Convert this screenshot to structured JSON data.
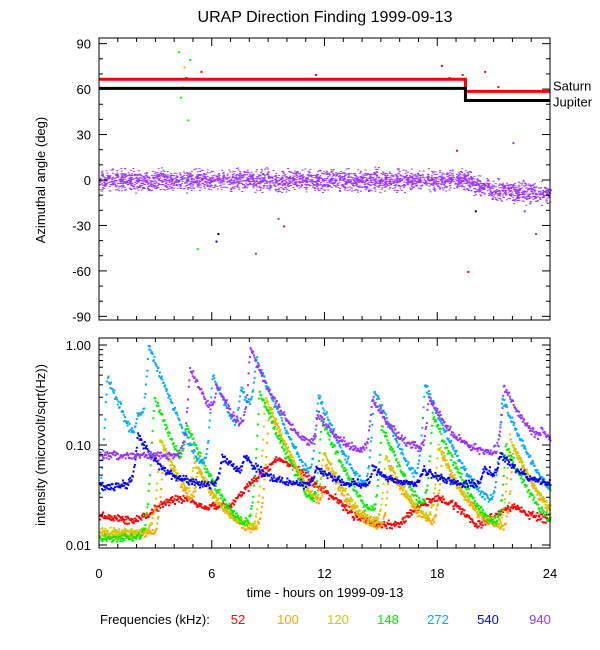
{
  "chart_data": [
    {
      "type": "scatter",
      "title": "URAP Direction Finding  1999-09-13",
      "ylabel": "Azimuthal angle (deg)",
      "xlim": [
        0,
        24
      ],
      "ylim": [
        -90,
        90
      ],
      "yticks": [
        "90",
        "60",
        "30",
        "0",
        "-30",
        "-60",
        "-90"
      ],
      "reference_lines": [
        {
          "name": "Saturn",
          "color": "#ff0000",
          "segments": [
            [
              0,
              19.5,
              66.5
            ],
            [
              19.5,
              24,
              58.5
            ]
          ]
        },
        {
          "name": "Jupiter",
          "color": "#000000",
          "segments": [
            [
              0,
              19.5,
              60.5
            ],
            [
              19.5,
              24,
              52.5
            ]
          ]
        }
      ],
      "scatter_band": {
        "color": "#9933ff",
        "mean": [
          [
            0,
            0
          ],
          [
            19.5,
            0
          ],
          [
            21,
            -7
          ],
          [
            24,
            -8
          ]
        ],
        "spread": 6
      },
      "outliers": [
        [
          4.2,
          85,
          "#00ff00"
        ],
        [
          4.5,
          75,
          "#ffaa00"
        ],
        [
          4.4,
          62,
          "#ffcc00"
        ],
        [
          4.6,
          68,
          "#ff0000"
        ],
        [
          4.3,
          55,
          "#00ff00"
        ],
        [
          4.8,
          80,
          "#00ff00"
        ],
        [
          5.4,
          72,
          "#ff0000"
        ],
        [
          4.7,
          40,
          "#00ff00"
        ],
        [
          18.2,
          76,
          "#ff0000"
        ],
        [
          18.6,
          68,
          "#ff0000"
        ],
        [
          19.3,
          70,
          "#ff0000"
        ],
        [
          20.5,
          72,
          "#ff0000"
        ],
        [
          21.2,
          62,
          "#ff0000"
        ],
        [
          11.5,
          70,
          "#ff0000"
        ],
        [
          6.2,
          -40,
          "#0000ff"
        ],
        [
          6.3,
          -35,
          "#000000"
        ],
        [
          8.3,
          -48,
          "#9933ff"
        ],
        [
          9.5,
          -25,
          "#9933ff"
        ],
        [
          9.8,
          -30,
          "#ff0000"
        ],
        [
          5.2,
          -45,
          "#00ff00"
        ],
        [
          23.2,
          -35,
          "#9933ff"
        ],
        [
          22.6,
          -20,
          "#9933ff"
        ],
        [
          19.6,
          -60,
          "#ff0000"
        ],
        [
          20.0,
          -20,
          "#000000"
        ],
        [
          19.0,
          20,
          "#ff0000"
        ],
        [
          22.0,
          25,
          "#9933ff"
        ]
      ]
    },
    {
      "type": "scatter",
      "ylabel": "intensity (microvolt/sqrt(Hz))",
      "xlabel": "time - hours on 1999-09-13",
      "xlim": [
        0,
        24
      ],
      "ylim": [
        0.01,
        1.0
      ],
      "yscale": "log",
      "xticks": [
        "0",
        "6",
        "12",
        "18",
        "24"
      ],
      "yticks": [
        "1.00",
        "0.10",
        "0.01"
      ],
      "legend_title": "Frequencies (kHz):",
      "series": [
        {
          "name": "52",
          "color": "#ff0000",
          "base": [
            [
              0,
              0.02
            ],
            [
              1.5,
              0.018
            ],
            [
              2.5,
              0.02
            ],
            [
              3.5,
              0.028
            ],
            [
              4.5,
              0.03
            ],
            [
              5.5,
              0.025
            ],
            [
              7,
              0.025
            ],
            [
              8.5,
              0.05
            ],
            [
              9.5,
              0.075
            ],
            [
              10.5,
              0.06
            ],
            [
              11.5,
              0.04
            ],
            [
              12.5,
              0.03
            ],
            [
              13.5,
              0.02
            ],
            [
              15,
              0.016
            ],
            [
              16,
              0.017
            ],
            [
              17,
              0.025
            ],
            [
              18,
              0.03
            ],
            [
              19,
              0.025
            ],
            [
              20,
              0.016
            ],
            [
              21,
              0.02
            ],
            [
              22,
              0.025
            ],
            [
              23,
              0.02
            ],
            [
              24,
              0.018
            ]
          ],
          "peaks": []
        },
        {
          "name": "100",
          "color": "#ffa500",
          "base": [
            [
              0,
              0.013
            ],
            [
              24,
              0.013
            ]
          ],
          "peaks": [
            [
              3.4,
              0.09
            ],
            [
              5.2,
              0.05
            ],
            [
              9.0,
              0.25
            ],
            [
              12.0,
              0.06
            ],
            [
              15.4,
              0.06
            ],
            [
              18.2,
              0.08
            ],
            [
              22.0,
              0.1
            ]
          ]
        },
        {
          "name": "120",
          "color": "#cccc00",
          "base": [
            [
              0,
              0.014
            ],
            [
              24,
              0.014
            ]
          ],
          "peaks": [
            [
              3.2,
              0.12
            ],
            [
              5.0,
              0.06
            ],
            [
              8.8,
              0.3
            ],
            [
              11.9,
              0.08
            ],
            [
              15.2,
              0.08
            ],
            [
              18.0,
              0.1
            ],
            [
              21.8,
              0.12
            ]
          ]
        },
        {
          "name": "148",
          "color": "#00ee00",
          "base": [
            [
              0,
              0.012
            ],
            [
              24,
              0.012
            ]
          ],
          "peaks": [
            [
              2.9,
              0.3
            ],
            [
              4.6,
              0.12
            ],
            [
              8.5,
              0.35
            ],
            [
              11.8,
              0.18
            ],
            [
              15.0,
              0.15
            ],
            [
              17.7,
              0.2
            ],
            [
              21.6,
              0.1
            ]
          ]
        },
        {
          "name": "272",
          "color": "#00aaff",
          "base": [
            [
              0,
              0.02
            ],
            [
              24,
              0.02
            ]
          ],
          "peaks": [
            [
              0.4,
              0.5
            ],
            [
              2.0,
              0.13
            ],
            [
              2.6,
              0.9
            ],
            [
              6.0,
              0.5
            ],
            [
              7.5,
              0.3
            ],
            [
              8.3,
              0.6
            ],
            [
              11.6,
              0.3
            ],
            [
              14.6,
              0.35
            ],
            [
              17.3,
              0.4
            ],
            [
              21.4,
              0.3
            ]
          ]
        },
        {
          "name": "540",
          "color": "#0000ff",
          "base": [
            [
              0,
              0.04
            ],
            [
              24,
              0.04
            ]
          ],
          "peaks": [
            [
              2.0,
              0.13
            ],
            [
              6.5,
              0.08
            ],
            [
              7.7,
              0.07
            ],
            [
              11.5,
              0.06
            ],
            [
              14.5,
              0.06
            ],
            [
              17.2,
              0.06
            ],
            [
              20.4,
              0.06
            ],
            [
              21.3,
              0.08
            ]
          ]
        },
        {
          "name": "940",
          "color": "#9933ff",
          "base": [
            [
              0,
              0.08
            ],
            [
              24,
              0.08
            ]
          ],
          "peaks": [
            [
              4.8,
              0.6
            ],
            [
              6.2,
              0.3
            ],
            [
              8.0,
              0.9
            ],
            [
              11.6,
              0.2
            ],
            [
              14.5,
              0.3
            ],
            [
              17.5,
              0.3
            ],
            [
              21.5,
              0.4
            ],
            [
              23.5,
              0.11
            ]
          ]
        }
      ]
    }
  ]
}
